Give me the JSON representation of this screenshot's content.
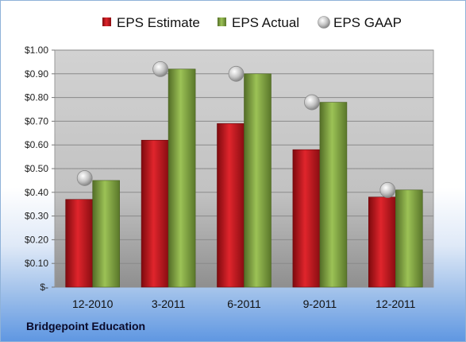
{
  "company": "Bridgepoint Education",
  "chart_data": {
    "type": "bar",
    "categories": [
      "12-2010",
      "3-2011",
      "6-2011",
      "9-2011",
      "12-2011"
    ],
    "series": [
      {
        "name": "EPS Estimate",
        "type": "bar",
        "color": "#c0181f",
        "values": [
          0.37,
          0.62,
          0.69,
          0.58,
          0.38
        ]
      },
      {
        "name": "EPS Actual",
        "type": "bar",
        "color": "#7fa241",
        "values": [
          0.45,
          0.92,
          0.9,
          0.78,
          0.41
        ]
      },
      {
        "name": "EPS GAAP",
        "type": "scatter",
        "color": "#b8b8b8",
        "values": [
          0.46,
          0.92,
          0.9,
          0.78,
          0.41
        ]
      }
    ],
    "ylim": [
      0,
      1.0
    ],
    "yticks": [
      0,
      0.1,
      0.2,
      0.3,
      0.4,
      0.5,
      0.6,
      0.7,
      0.8,
      0.9,
      1.0
    ],
    "ytick_labels": [
      "$-",
      "$0.10",
      "$0.20",
      "$0.30",
      "$0.40",
      "$0.50",
      "$0.60",
      "$0.70",
      "$0.80",
      "$0.90",
      "$1.00"
    ],
    "grid": true,
    "legend": "top"
  }
}
